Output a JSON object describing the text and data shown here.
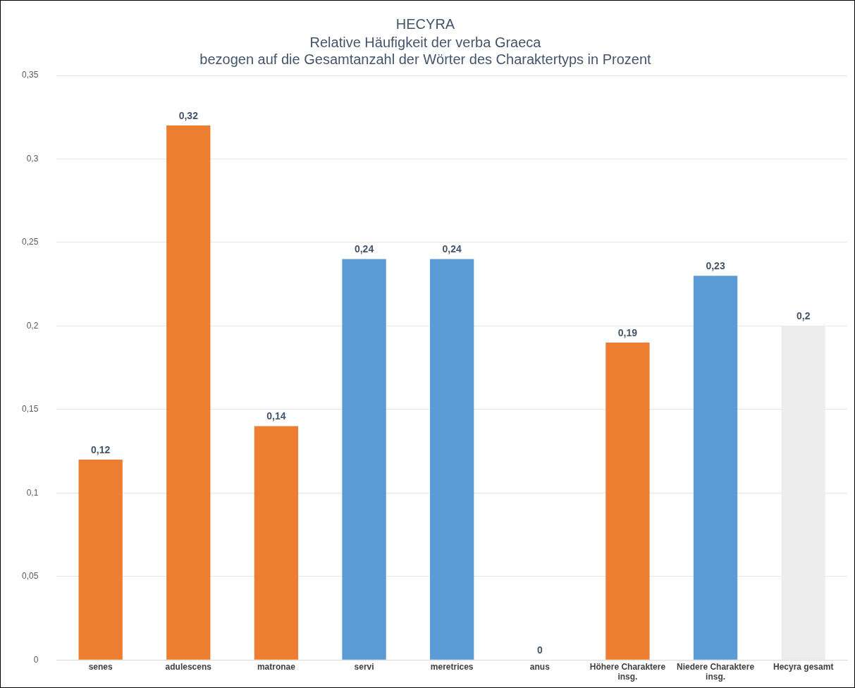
{
  "chart_data": {
    "type": "bar",
    "title": "HECYRA",
    "subtitle": "Relative Häufigkeit der verba Graeca\nbezogen auf die Gesamtanzahl der Wörter des Charaktertyps in Prozent",
    "categories": [
      "senes",
      "adulescens",
      "matronae",
      "servi",
      "meretrices",
      "anus",
      "Höhere Charaktere insg.",
      "Niedere Charaktere insg.",
      "Hecyra gesamt"
    ],
    "values": [
      0.12,
      0.32,
      0.14,
      0.24,
      0.24,
      0,
      0.19,
      0.23,
      0.2
    ],
    "colors": [
      "#ed7d31",
      "#ed7d31",
      "#ed7d31",
      "#5b9bd5",
      "#5b9bd5",
      "#5b9bd5",
      "#ed7d31",
      "#5b9bd5",
      "#ededed"
    ],
    "value_labels": [
      "0,12",
      "0,32",
      "0,14",
      "0,24",
      "0,24",
      "0",
      "0,19",
      "0,23",
      "0,2"
    ],
    "ylim": [
      0,
      0.35
    ],
    "yticks": [
      {
        "value": 0,
        "label": "0"
      },
      {
        "value": 0.05,
        "label": "0,05"
      },
      {
        "value": 0.1,
        "label": "0,1"
      },
      {
        "value": 0.15,
        "label": "0,15"
      },
      {
        "value": 0.2,
        "label": "0,2"
      },
      {
        "value": 0.25,
        "label": "0,25"
      },
      {
        "value": 0.3,
        "label": "0,3"
      },
      {
        "value": 0.35,
        "label": "0,35"
      }
    ],
    "grid": "y",
    "legend": false
  }
}
